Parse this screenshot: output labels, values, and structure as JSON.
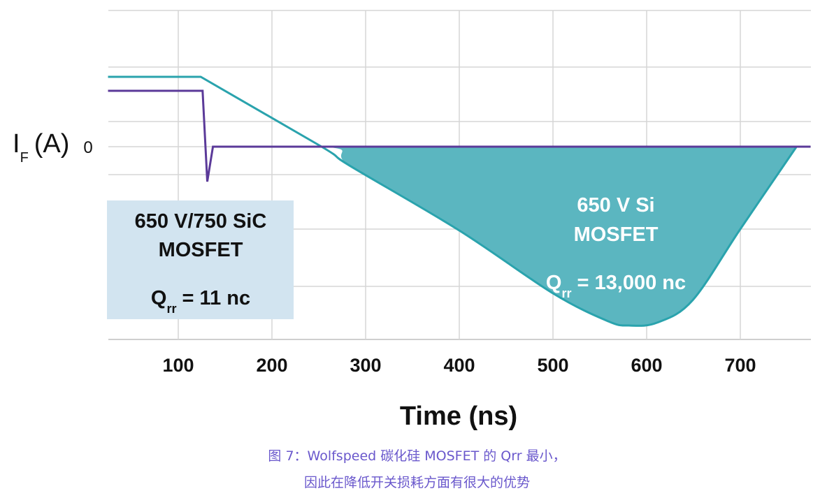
{
  "chart_data": {
    "type": "line",
    "xlabel": "Time (ns)",
    "ylabel": "I",
    "ylabel_sub": "F",
    "ylabel_unit": "(A)",
    "xlim": [
      25,
      775
    ],
    "x_ticks": [
      100,
      200,
      300,
      400,
      500,
      600,
      700
    ],
    "y_ticks": [
      {
        "value": 0,
        "label": "0"
      }
    ],
    "grid": true,
    "colors": {
      "si": "#2aa3ad",
      "si_fill": "#5bb6c0",
      "sic": "#5b3a99",
      "sic_box": "#d2e4f0",
      "caption": "#6a58cc"
    },
    "series": [
      {
        "key": "si",
        "points": [
          [
            25,
            2.5
          ],
          [
            124,
            2.5
          ],
          [
            253,
            0
          ],
          [
            283,
            -0.68
          ],
          [
            400,
            -3.0
          ],
          [
            500,
            -5.25
          ],
          [
            559,
            -6.25
          ],
          [
            581,
            -6.4
          ],
          [
            611,
            -6.3
          ],
          [
            649,
            -5.5
          ],
          [
            700,
            -2.95
          ],
          [
            760,
            0
          ]
        ],
        "filled": true
      },
      {
        "key": "sic",
        "points": [
          [
            25,
            2.0
          ],
          [
            126,
            2.0
          ],
          [
            131,
            -1.25
          ],
          [
            137,
            0
          ],
          [
            775,
            0
          ]
        ],
        "filled": false
      }
    ],
    "annotations": {
      "sic": {
        "line1": "650 V/750 SiC",
        "line2": "MOSFET",
        "q": "Q",
        "q_sub": "rr",
        "q_value": " = 11 nc"
      },
      "si": {
        "line1": "650 V Si",
        "line2": "MOSFET",
        "q": "Q",
        "q_sub": "rr",
        "q_value": " = 13,000 nc"
      }
    }
  },
  "caption": {
    "line1": "图 7：Wolfspeed 碳化硅 MOSFET 的 Qrr 最小，",
    "line2": "因此在降低开关损耗方面有很大的优势"
  }
}
